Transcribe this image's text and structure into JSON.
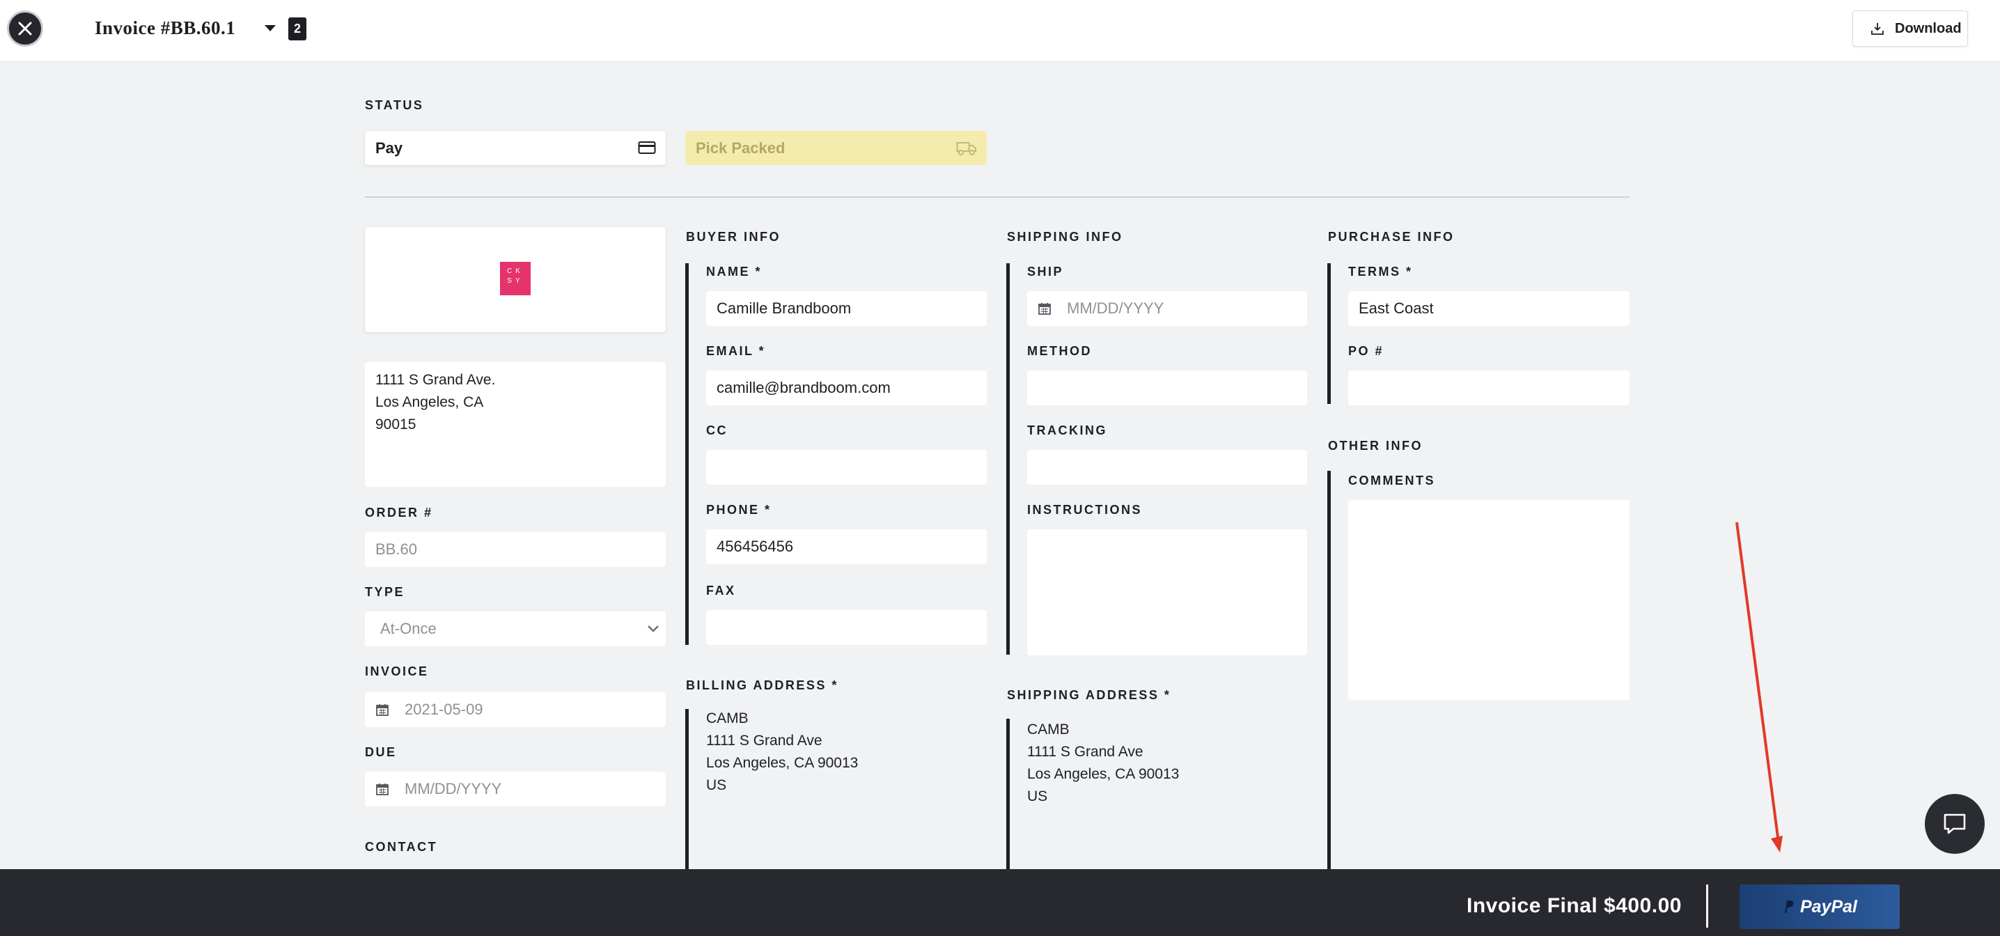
{
  "header": {
    "title": "Invoice #BB.60.1",
    "badge": "2",
    "download_label": "Download"
  },
  "status": {
    "label": "STATUS",
    "pay_value": "Pay",
    "pick_value": "Pick Packed"
  },
  "company": {
    "logo_text": [
      "C",
      "K",
      "S",
      "Y"
    ],
    "address_lines": [
      "1111 S Grand Ave.",
      "Los Angeles, CA",
      "90015"
    ]
  },
  "order": {
    "order_label": "ORDER #",
    "order_placeholder": "BB.60",
    "type_label": "TYPE",
    "type_value": "At-Once",
    "invoice_label": "INVOICE",
    "invoice_date": "2021-05-09",
    "due_label": "DUE",
    "due_placeholder": "MM/DD/YYYY",
    "contact_label": "CONTACT"
  },
  "buyer": {
    "section": "BUYER INFO",
    "name_label": "NAME *",
    "name_value": "Camille Brandboom",
    "email_label": "EMAIL *",
    "email_value": "camille@brandboom.com",
    "cc_label": "CC",
    "phone_label": "PHONE *",
    "phone_value": "456456456",
    "fax_label": "FAX"
  },
  "billing": {
    "label": "BILLING ADDRESS *",
    "lines": [
      "CAMB",
      "1111 S Grand Ave",
      "Los Angeles, CA 90013",
      "US"
    ]
  },
  "shipping": {
    "section": "SHIPPING INFO",
    "ship_label": "SHIP",
    "ship_placeholder": "MM/DD/YYYY",
    "method_label": "METHOD",
    "tracking_label": "TRACKING",
    "instructions_label": "INSTRUCTIONS",
    "address_label": "SHIPPING ADDRESS *",
    "address_lines": [
      "CAMB",
      "1111 S Grand Ave",
      "Los Angeles, CA 90013",
      "US"
    ]
  },
  "purchase": {
    "section": "PURCHASE INFO",
    "terms_label": "TERMS *",
    "terms_value": "East Coast",
    "po_label": "PO #"
  },
  "other": {
    "section": "OTHER INFO",
    "comments_label": "COMMENTS"
  },
  "footer": {
    "final_text": "Invoice Final $400.00",
    "paypal_label": "PayPal"
  },
  "colors": {
    "accent_dark": "#27292e",
    "pick_packed_bg": "#f5ebac",
    "paypal_blue": "#254b86",
    "arrow_red": "#e03a26",
    "logo_pink": "#e5336b"
  }
}
